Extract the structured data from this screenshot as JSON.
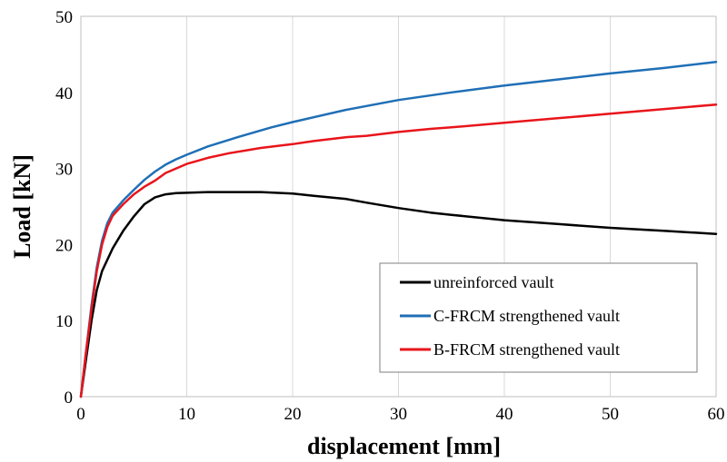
{
  "chart_data": {
    "type": "line",
    "title": "",
    "xlabel": "displacement [mm]",
    "ylabel": "Load [kN]",
    "xlim": [
      0,
      60
    ],
    "ylim": [
      0,
      50
    ],
    "xticks": [
      0,
      10,
      20,
      30,
      40,
      50,
      60
    ],
    "yticks": [
      0,
      10,
      20,
      30,
      40,
      50
    ],
    "grid": "vertical",
    "legend_position": "bottom-right",
    "series": [
      {
        "name": "unreinforced vault",
        "color": "#000000",
        "points": [
          [
            0,
            0
          ],
          [
            0.5,
            5
          ],
          [
            1,
            10
          ],
          [
            1.5,
            14
          ],
          [
            2,
            16.5
          ],
          [
            3,
            19.5
          ],
          [
            4,
            21.8
          ],
          [
            5,
            23.7
          ],
          [
            6,
            25.3
          ],
          [
            7,
            26.2
          ],
          [
            8,
            26.6
          ],
          [
            9,
            26.75
          ],
          [
            10,
            26.8
          ],
          [
            12,
            26.9
          ],
          [
            15,
            26.9
          ],
          [
            17,
            26.9
          ],
          [
            20,
            26.7
          ],
          [
            22,
            26.4
          ],
          [
            25,
            26
          ],
          [
            27,
            25.5
          ],
          [
            30,
            24.8
          ],
          [
            33,
            24.2
          ],
          [
            35,
            23.9
          ],
          [
            40,
            23.2
          ],
          [
            45,
            22.7
          ],
          [
            50,
            22.2
          ],
          [
            55,
            21.8
          ],
          [
            60,
            21.4
          ]
        ]
      },
      {
        "name": "C-FRCM strengthened vault",
        "color": "#1f6fb6",
        "points": [
          [
            0,
            0
          ],
          [
            0.5,
            6
          ],
          [
            1,
            12
          ],
          [
            1.5,
            17
          ],
          [
            2,
            20.5
          ],
          [
            2.5,
            22.8
          ],
          [
            3,
            24.2
          ],
          [
            4,
            25.8
          ],
          [
            5,
            27.2
          ],
          [
            6,
            28.5
          ],
          [
            7,
            29.6
          ],
          [
            8,
            30.5
          ],
          [
            9,
            31.2
          ],
          [
            10,
            31.8
          ],
          [
            12,
            32.9
          ],
          [
            15,
            34.2
          ],
          [
            18,
            35.4
          ],
          [
            20,
            36.1
          ],
          [
            25,
            37.7
          ],
          [
            30,
            39
          ],
          [
            35,
            40
          ],
          [
            40,
            40.9
          ],
          [
            45,
            41.7
          ],
          [
            50,
            42.5
          ],
          [
            55,
            43.2
          ],
          [
            60,
            44
          ]
        ]
      },
      {
        "name": "B-FRCM strengthened vault",
        "color": "#e8151b",
        "points": [
          [
            0,
            0
          ],
          [
            0.5,
            6
          ],
          [
            1,
            11.5
          ],
          [
            1.5,
            16.5
          ],
          [
            2,
            20
          ],
          [
            2.5,
            22.3
          ],
          [
            3,
            23.8
          ],
          [
            4,
            25.3
          ],
          [
            5,
            26.6
          ],
          [
            6,
            27.6
          ],
          [
            7,
            28.4
          ],
          [
            8,
            29.4
          ],
          [
            9,
            30
          ],
          [
            10,
            30.6
          ],
          [
            12,
            31.4
          ],
          [
            14,
            32
          ],
          [
            17,
            32.7
          ],
          [
            20,
            33.2
          ],
          [
            22,
            33.6
          ],
          [
            25,
            34.1
          ],
          [
            27,
            34.3
          ],
          [
            30,
            34.8
          ],
          [
            33,
            35.2
          ],
          [
            35,
            35.4
          ],
          [
            40,
            36
          ],
          [
            45,
            36.6
          ],
          [
            50,
            37.2
          ],
          [
            55,
            37.8
          ],
          [
            60,
            38.4
          ]
        ]
      }
    ]
  }
}
